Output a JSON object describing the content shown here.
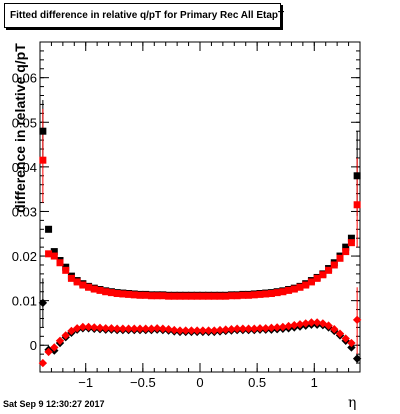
{
  "chart_data": {
    "type": "scatter",
    "title": "Fitted difference in relative q/pT for Primary Rec All EtapT",
    "xlabel": "η",
    "ylabel": "difference in relative q/pT",
    "xlim": [
      -1.4,
      1.4
    ],
    "ylim": [
      -0.006,
      0.068
    ],
    "x_ticks": [
      -1,
      -0.5,
      0,
      0.5,
      1
    ],
    "x_tick_labels": [
      "−1",
      "−0.5",
      "0",
      "0.5",
      "1"
    ],
    "y_ticks": [
      0,
      0.01,
      0.02,
      0.03,
      0.04,
      0.05,
      0.06
    ],
    "y_tick_labels": [
      "0",
      "0.01",
      "0.02",
      "0.03",
      "0.04",
      "0.05",
      "0.06"
    ],
    "grid": false,
    "series": [
      {
        "name": "",
        "color": "#000000",
        "marker": "square",
        "x": [
          -1.375,
          -1.325,
          -1.275,
          -1.225,
          -1.175,
          -1.125,
          -1.075,
          -1.025,
          -0.975,
          -0.925,
          -0.875,
          -0.825,
          -0.775,
          -0.725,
          -0.675,
          -0.625,
          -0.575,
          -0.525,
          -0.475,
          -0.425,
          -0.375,
          -0.325,
          -0.275,
          -0.225,
          -0.175,
          -0.125,
          -0.075,
          -0.025,
          0.025,
          0.075,
          0.125,
          0.175,
          0.225,
          0.275,
          0.325,
          0.375,
          0.425,
          0.475,
          0.525,
          0.575,
          0.625,
          0.675,
          0.725,
          0.775,
          0.825,
          0.875,
          0.925,
          0.975,
          1.025,
          1.075,
          1.125,
          1.175,
          1.225,
          1.275,
          1.325,
          1.375
        ],
        "y": [
          0.048,
          0.026,
          0.021,
          0.019,
          0.0175,
          0.0155,
          0.0145,
          0.0138,
          0.0132,
          0.0128,
          0.0125,
          0.0122,
          0.012,
          0.0118,
          0.0117,
          0.0116,
          0.0115,
          0.0114,
          0.0114,
          0.0113,
          0.0113,
          0.0113,
          0.0112,
          0.0112,
          0.0112,
          0.0112,
          0.0112,
          0.0112,
          0.0112,
          0.0112,
          0.0112,
          0.0112,
          0.0112,
          0.0113,
          0.0113,
          0.0114,
          0.0114,
          0.0115,
          0.0116,
          0.0117,
          0.0118,
          0.012,
          0.0122,
          0.0125,
          0.0128,
          0.0132,
          0.0138,
          0.0145,
          0.0152,
          0.016,
          0.0172,
          0.0185,
          0.02,
          0.022,
          0.024,
          0.038
        ]
      },
      {
        "name": "",
        "color": "#ff0000",
        "marker": "square",
        "x": [
          -1.375,
          -1.325,
          -1.275,
          -1.225,
          -1.175,
          -1.125,
          -1.075,
          -1.025,
          -0.975,
          -0.925,
          -0.875,
          -0.825,
          -0.775,
          -0.725,
          -0.675,
          -0.625,
          -0.575,
          -0.525,
          -0.475,
          -0.425,
          -0.375,
          -0.325,
          -0.275,
          -0.225,
          -0.175,
          -0.125,
          -0.075,
          -0.025,
          0.025,
          0.075,
          0.125,
          0.175,
          0.225,
          0.275,
          0.325,
          0.375,
          0.425,
          0.475,
          0.525,
          0.575,
          0.625,
          0.675,
          0.725,
          0.775,
          0.825,
          0.875,
          0.925,
          0.975,
          1.025,
          1.075,
          1.125,
          1.175,
          1.225,
          1.275,
          1.325,
          1.375
        ],
        "y": [
          0.0415,
          0.0205,
          0.02,
          0.0185,
          0.0168,
          0.015,
          0.0142,
          0.0135,
          0.013,
          0.0126,
          0.0123,
          0.012,
          0.0118,
          0.0116,
          0.0115,
          0.0114,
          0.0113,
          0.0112,
          0.0112,
          0.0111,
          0.0111,
          0.0111,
          0.011,
          0.011,
          0.011,
          0.011,
          0.011,
          0.011,
          0.011,
          0.011,
          0.011,
          0.011,
          0.011,
          0.0111,
          0.0111,
          0.0112,
          0.0112,
          0.0113,
          0.0114,
          0.0115,
          0.0116,
          0.0118,
          0.012,
          0.0123,
          0.0126,
          0.013,
          0.0135,
          0.0142,
          0.015,
          0.0158,
          0.0168,
          0.018,
          0.0195,
          0.021,
          0.023,
          0.0315
        ]
      },
      {
        "name": "",
        "color": "#000000",
        "marker": "diamond",
        "x": [
          -1.375,
          -1.325,
          -1.275,
          -1.225,
          -1.175,
          -1.125,
          -1.075,
          -1.025,
          -0.975,
          -0.925,
          -0.875,
          -0.825,
          -0.775,
          -0.725,
          -0.675,
          -0.625,
          -0.575,
          -0.525,
          -0.475,
          -0.425,
          -0.375,
          -0.325,
          -0.275,
          -0.225,
          -0.175,
          -0.125,
          -0.075,
          -0.025,
          0.025,
          0.075,
          0.125,
          0.175,
          0.225,
          0.275,
          0.325,
          0.375,
          0.425,
          0.475,
          0.525,
          0.575,
          0.625,
          0.675,
          0.725,
          0.775,
          0.825,
          0.875,
          0.925,
          0.975,
          1.025,
          1.075,
          1.125,
          1.175,
          1.225,
          1.275,
          1.325,
          1.375
        ],
        "y": [
          0.0095,
          -0.001,
          -0.0012,
          0.0005,
          0.0018,
          0.0028,
          0.0035,
          0.0038,
          0.0038,
          0.0037,
          0.0036,
          0.0035,
          0.0035,
          0.0034,
          0.0034,
          0.0034,
          0.0034,
          0.0034,
          0.0034,
          0.0034,
          0.0035,
          0.0034,
          0.0033,
          0.0031,
          0.003,
          0.003,
          0.003,
          0.003,
          0.003,
          0.003,
          0.003,
          0.0031,
          0.0032,
          0.0033,
          0.0034,
          0.0034,
          0.0034,
          0.0034,
          0.0035,
          0.0035,
          0.0035,
          0.0036,
          0.0037,
          0.0038,
          0.004,
          0.0042,
          0.0044,
          0.0046,
          0.0046,
          0.0045,
          0.004,
          0.0032,
          0.0022,
          0.001,
          -0.0005,
          -0.003
        ]
      },
      {
        "name": "",
        "color": "#ff0000",
        "marker": "diamond",
        "x": [
          -1.375,
          -1.325,
          -1.275,
          -1.225,
          -1.175,
          -1.125,
          -1.075,
          -1.025,
          -0.975,
          -0.925,
          -0.875,
          -0.825,
          -0.775,
          -0.725,
          -0.675,
          -0.625,
          -0.575,
          -0.525,
          -0.475,
          -0.425,
          -0.375,
          -0.325,
          -0.275,
          -0.225,
          -0.175,
          -0.125,
          -0.075,
          -0.025,
          0.025,
          0.075,
          0.125,
          0.175,
          0.225,
          0.275,
          0.325,
          0.375,
          0.425,
          0.475,
          0.525,
          0.575,
          0.625,
          0.675,
          0.725,
          0.775,
          0.825,
          0.875,
          0.925,
          0.975,
          1.025,
          1.075,
          1.125,
          1.175,
          1.225,
          1.275,
          1.325,
          1.375
        ],
        "y": [
          -0.004,
          -0.0015,
          -0.0005,
          0.001,
          0.0022,
          0.0032,
          0.0038,
          0.0041,
          0.0041,
          0.004,
          0.0039,
          0.0038,
          0.0038,
          0.0037,
          0.0037,
          0.0037,
          0.0037,
          0.0037,
          0.0037,
          0.0037,
          0.0038,
          0.0037,
          0.0036,
          0.0034,
          0.0033,
          0.0033,
          0.0033,
          0.0033,
          0.0033,
          0.0033,
          0.0033,
          0.0034,
          0.0035,
          0.0036,
          0.0037,
          0.0037,
          0.0037,
          0.0037,
          0.0038,
          0.0038,
          0.0039,
          0.004,
          0.0041,
          0.0043,
          0.0045,
          0.0047,
          0.0049,
          0.0051,
          0.0051,
          0.0049,
          0.0044,
          0.0036,
          0.0026,
          0.0015,
          0.0005,
          0.0057
        ]
      }
    ],
    "error_bars": [
      {
        "series": 0,
        "x": -1.375,
        "low": 0.041,
        "high": 0.055
      },
      {
        "series": 1,
        "x": -1.375,
        "low": 0.032,
        "high": 0.053
      },
      {
        "series": 2,
        "x": -1.375,
        "low": 0.004,
        "high": 0.015
      },
      {
        "series": 0,
        "x": 1.375,
        "low": 0.029,
        "high": 0.048
      },
      {
        "series": 1,
        "x": 1.375,
        "low": 0.022,
        "high": 0.042
      },
      {
        "series": 3,
        "x": 1.375,
        "low": -0.002,
        "high": 0.013
      }
    ]
  },
  "footer": {
    "date": "Sat Sep  9 12:30:27 2017"
  }
}
